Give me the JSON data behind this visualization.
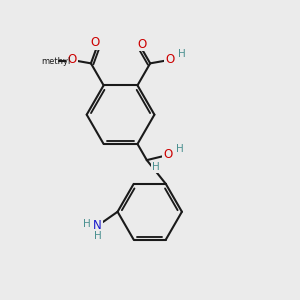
{
  "background_color": "#ebebeb",
  "figsize": [
    3.0,
    3.0
  ],
  "dpi": 100,
  "atom_colors": {
    "C": "#1a1a1a",
    "O": "#cc0000",
    "N": "#1a1acc",
    "H": "#4a9090"
  },
  "bond_color": "#1a1a1a",
  "bond_width": 1.5,
  "font_size_atom": 8.5,
  "font_size_H": 7.5
}
